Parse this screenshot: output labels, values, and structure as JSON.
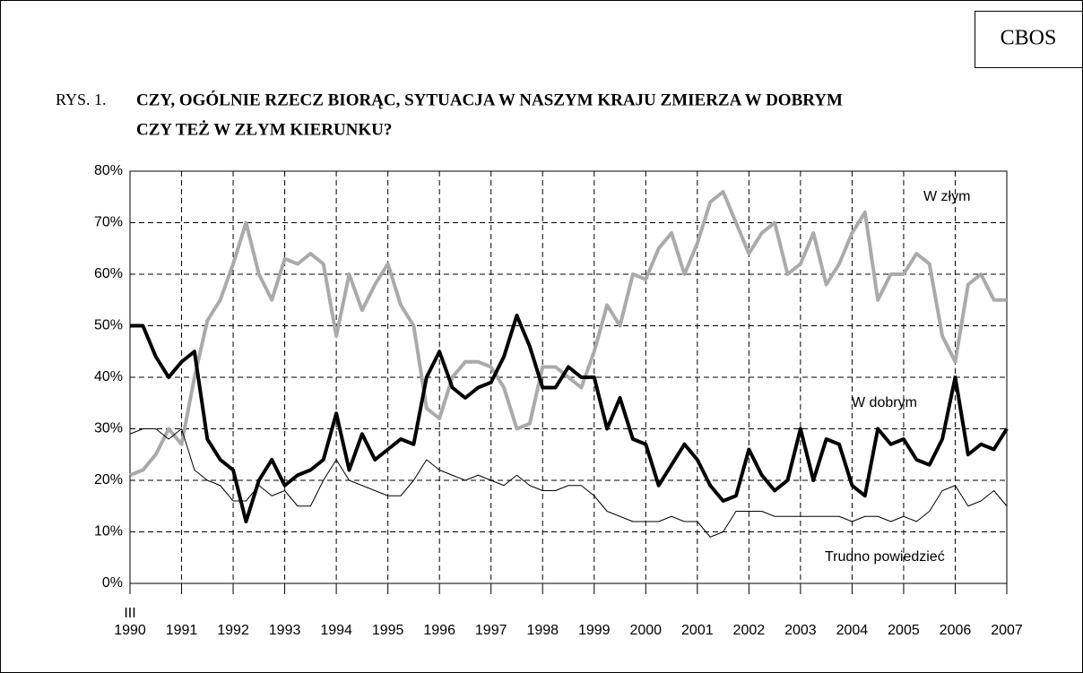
{
  "source": "CBOS",
  "chart_data": {
    "type": "line",
    "figure_label": "RYS. 1.",
    "title_lines": [
      "CZY, OGÓLNIE RZECZ BIORĄC, SYTUACJA W NASZYM KRAJU ZMIERZA W DOBRYM",
      "CZY TEŻ W ZŁYM KIERUNKU?"
    ],
    "start_annotation": "III",
    "xlim": [
      1990,
      2007
    ],
    "xticks": [
      1990,
      1991,
      1992,
      1993,
      1994,
      1995,
      1996,
      1997,
      1998,
      1999,
      2000,
      2001,
      2002,
      2003,
      2004,
      2005,
      2006,
      2007
    ],
    "ylim": [
      0,
      80
    ],
    "yticks": [
      {
        "value": 0,
        "label": "0%"
      },
      {
        "value": 10,
        "label": "10%"
      },
      {
        "value": 20,
        "label": "20%"
      },
      {
        "value": 30,
        "label": "30%"
      },
      {
        "value": 40,
        "label": "40%"
      },
      {
        "value": 50,
        "label": "50%"
      },
      {
        "value": 60,
        "label": "60%"
      },
      {
        "value": 70,
        "label": "70%"
      },
      {
        "value": 80,
        "label": "80%"
      }
    ],
    "grid": true,
    "x": [
      1990,
      1990.25,
      1990.5,
      1990.75,
      1991,
      1991.25,
      1991.5,
      1991.75,
      1992,
      1992.25,
      1992.5,
      1992.75,
      1993,
      1993.25,
      1993.5,
      1993.75,
      1994,
      1994.25,
      1994.5,
      1994.75,
      1995,
      1995.25,
      1995.5,
      1995.75,
      1996,
      1996.25,
      1996.5,
      1996.75,
      1997,
      1997.25,
      1997.5,
      1997.75,
      1998,
      1998.25,
      1998.5,
      1998.75,
      1999,
      1999.25,
      1999.5,
      1999.75,
      2000,
      2000.25,
      2000.5,
      2000.75,
      2001,
      2001.25,
      2001.5,
      2001.75,
      2002,
      2002.25,
      2002.5,
      2002.75,
      2003,
      2003.25,
      2003.5,
      2003.75,
      2004,
      2004.25,
      2004.5,
      2004.75,
      2005,
      2005.25,
      2005.5,
      2005.75,
      2006,
      2006.25,
      2006.5,
      2006.75,
      2007
    ],
    "series": [
      {
        "name": "W złym",
        "color": "#aaaaaa",
        "width": 4,
        "values": [
          21,
          22,
          25,
          30,
          27,
          40,
          51,
          55,
          62,
          70,
          60,
          55,
          63,
          62,
          64,
          62,
          48,
          60,
          53,
          58,
          62,
          54,
          50,
          34,
          32,
          40,
          43,
          43,
          42,
          38,
          30,
          31,
          42,
          42,
          40,
          38,
          45,
          54,
          50,
          60,
          59,
          65,
          68,
          60,
          66,
          74,
          76,
          70,
          64,
          68,
          70,
          60,
          62,
          68,
          58,
          62,
          68,
          72,
          55,
          60,
          60,
          64,
          62,
          48,
          43,
          58,
          60,
          55,
          55
        ]
      },
      {
        "name": "W dobrym",
        "color": "#000000",
        "width": 4,
        "values": [
          50,
          50,
          44,
          40,
          43,
          45,
          28,
          24,
          22,
          12,
          20,
          24,
          19,
          21,
          22,
          24,
          33,
          22,
          29,
          24,
          26,
          28,
          27,
          40,
          45,
          38,
          36,
          38,
          39,
          44,
          52,
          46,
          38,
          38,
          42,
          40,
          40,
          30,
          36,
          28,
          27,
          19,
          23,
          27,
          24,
          19,
          16,
          17,
          26,
          21,
          18,
          20,
          30,
          20,
          28,
          27,
          19,
          17,
          30,
          27,
          28,
          24,
          23,
          28,
          40,
          25,
          27,
          26,
          30
        ]
      },
      {
        "name": "Trudno powiedzieć",
        "color": "#000000",
        "width": 1,
        "values": [
          29,
          30,
          30,
          28,
          30,
          22,
          20,
          19,
          16,
          16,
          19,
          17,
          18,
          15,
          15,
          20,
          24,
          20,
          19,
          18,
          17,
          17,
          20,
          24,
          22,
          21,
          20,
          21,
          20,
          19,
          21,
          19,
          18,
          18,
          19,
          19,
          17,
          14,
          13,
          12,
          12,
          12,
          13,
          12,
          12,
          9,
          10,
          14,
          14,
          14,
          13,
          13,
          13,
          13,
          13,
          13,
          12,
          13,
          13,
          12,
          13,
          12,
          14,
          18,
          19,
          15,
          16,
          18,
          15
        ]
      }
    ]
  }
}
